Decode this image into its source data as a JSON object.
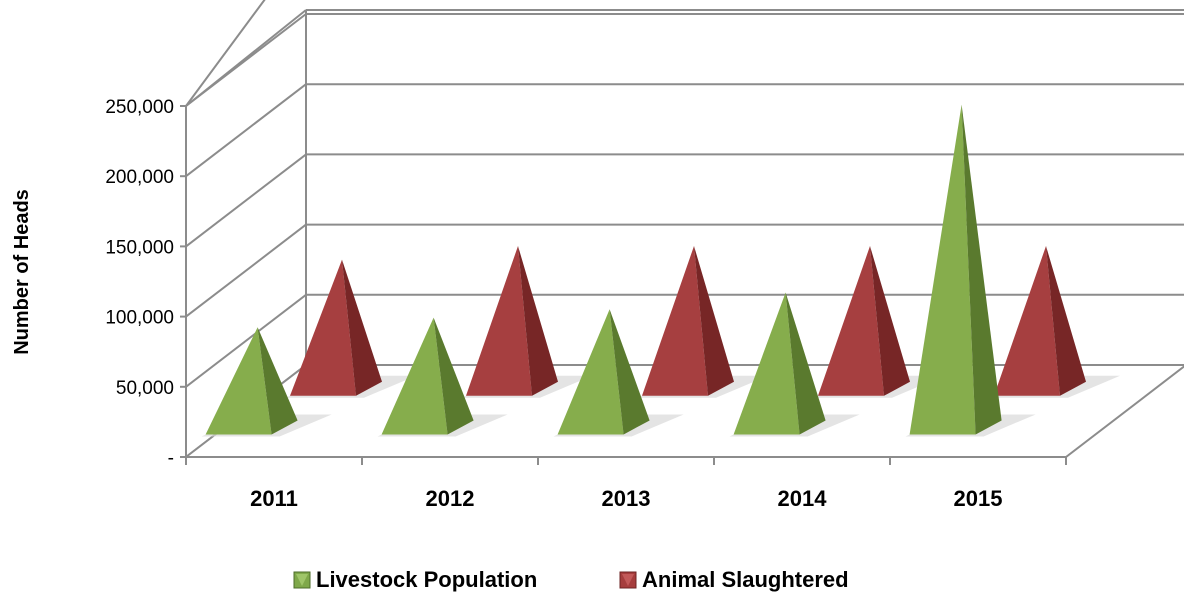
{
  "chart_data": {
    "type": "bar",
    "style": "3d-pyramid",
    "title": "",
    "xlabel": "",
    "ylabel": "Number of Heads",
    "categories": [
      "2011",
      "2012",
      "2013",
      "2014",
      "2015"
    ],
    "ylim": [
      0,
      250000
    ],
    "yticks": [
      0,
      50000,
      100000,
      150000,
      200000,
      250000
    ],
    "ytick_labels": [
      "-",
      "50,000",
      "100,000",
      "150,000",
      "200,000",
      "250,000"
    ],
    "grid": true,
    "legend_position": "bottom",
    "series": [
      {
        "name": "Livestock Population",
        "color": "#7fa84a",
        "values": [
          77000,
          84000,
          90000,
          102000,
          237000
        ]
      },
      {
        "name": "Animal Slaughtered",
        "color": "#a63d3d",
        "values": [
          100000,
          110000,
          110000,
          110000,
          110000
        ]
      }
    ]
  }
}
